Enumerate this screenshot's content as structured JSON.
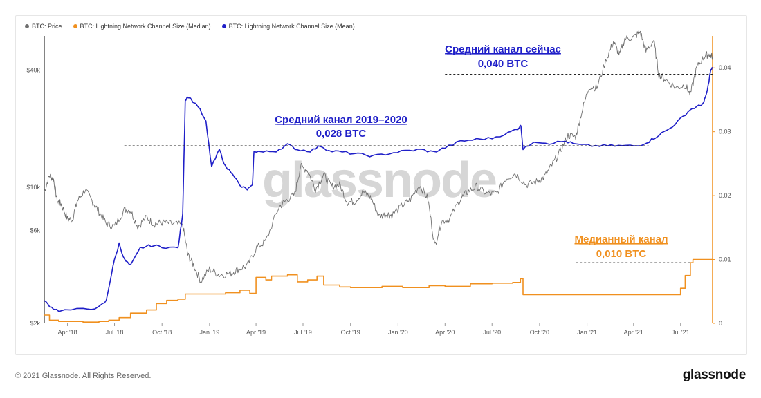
{
  "chart_data": {
    "type": "line",
    "legend": [
      {
        "name": "BTC: Price",
        "color": "#6f6f6f"
      },
      {
        "name": "BTC: Lightning Network Channel Size (Median)",
        "color": "#f0901f"
      },
      {
        "name": "BTC: Lightning Network Channel Size (Mean)",
        "color": "#1f1fc8"
      }
    ],
    "legend_placement": "top-left",
    "x_ticks": [
      "Apr '18",
      "Jul '18",
      "Oct '18",
      "Jan '19",
      "Apr '19",
      "Jul '19",
      "Oct '19",
      "Jan '20",
      "Apr '20",
      "Jul '20",
      "Oct '20",
      "Jan '21",
      "Apr '21",
      "Jul '21"
    ],
    "x_range": [
      "2018-02-15",
      "2021-09-01"
    ],
    "y_left": {
      "scale": "log",
      "ticks": [
        "$2k",
        "$6k",
        "$10k",
        "$40k"
      ],
      "tick_values": [
        2000,
        6000,
        10000,
        40000
      ],
      "range": [
        2000,
        60000
      ]
    },
    "y_right": {
      "scale": "linear",
      "ticks": [
        "0",
        "0.01",
        "0.02",
        "0.03",
        "0.04"
      ],
      "tick_values": [
        0,
        0.01,
        0.02,
        0.03,
        0.04
      ],
      "range": [
        0,
        0.045
      ]
    },
    "series": [
      {
        "name": "BTC: Price",
        "color": "#6f6f6f",
        "axis": "left",
        "points": [
          [
            "2018-02-15",
            9500
          ],
          [
            "2018-02-25",
            11500
          ],
          [
            "2018-03-05",
            11000
          ],
          [
            "2018-03-12",
            8500
          ],
          [
            "2018-03-20",
            8200
          ],
          [
            "2018-04-01",
            6900
          ],
          [
            "2018-04-10",
            6800
          ],
          [
            "2018-04-20",
            8500
          ],
          [
            "2018-05-05",
            9700
          ],
          [
            "2018-05-20",
            8400
          ],
          [
            "2018-06-01",
            7500
          ],
          [
            "2018-06-15",
            6500
          ],
          [
            "2018-07-01",
            6300
          ],
          [
            "2018-07-20",
            7700
          ],
          [
            "2018-08-01",
            7600
          ],
          [
            "2018-08-15",
            6300
          ],
          [
            "2018-09-01",
            7000
          ],
          [
            "2018-09-15",
            6500
          ],
          [
            "2018-10-01",
            6600
          ],
          [
            "2018-10-20",
            6500
          ],
          [
            "2018-11-10",
            6400
          ],
          [
            "2018-11-20",
            4500
          ],
          [
            "2018-12-01",
            4000
          ],
          [
            "2018-12-15",
            3300
          ],
          [
            "2019-01-01",
            3800
          ],
          [
            "2019-01-20",
            3550
          ],
          [
            "2019-02-10",
            3600
          ],
          [
            "2019-02-25",
            3800
          ],
          [
            "2019-03-15",
            3950
          ],
          [
            "2019-04-02",
            4900
          ],
          [
            "2019-04-20",
            5300
          ],
          [
            "2019-05-15",
            7900
          ],
          [
            "2019-05-30",
            8600
          ],
          [
            "2019-06-15",
            9200
          ],
          [
            "2019-06-26",
            12800
          ],
          [
            "2019-07-10",
            12200
          ],
          [
            "2019-07-25",
            9800
          ],
          [
            "2019-08-10",
            11600
          ],
          [
            "2019-08-25",
            10100
          ],
          [
            "2019-09-10",
            10300
          ],
          [
            "2019-09-25",
            8400
          ],
          [
            "2019-10-10",
            8500
          ],
          [
            "2019-10-26",
            9500
          ],
          [
            "2019-11-10",
            8800
          ],
          [
            "2019-11-25",
            7100
          ],
          [
            "2019-12-10",
            7300
          ],
          [
            "2019-12-20",
            7200
          ],
          [
            "2020-01-10",
            8100
          ],
          [
            "2020-01-25",
            8700
          ],
          [
            "2020-02-12",
            10300
          ],
          [
            "2020-02-28",
            8700
          ],
          [
            "2020-03-12",
            5000
          ],
          [
            "2020-03-25",
            6700
          ],
          [
            "2020-04-10",
            6900
          ],
          [
            "2020-04-30",
            8700
          ],
          [
            "2020-05-15",
            9500
          ],
          [
            "2020-06-01",
            10100
          ],
          [
            "2020-06-20",
            9300
          ],
          [
            "2020-07-10",
            9300
          ],
          [
            "2020-07-28",
            11100
          ],
          [
            "2020-08-15",
            11800
          ],
          [
            "2020-09-05",
            10300
          ],
          [
            "2020-09-25",
            10700
          ],
          [
            "2020-10-10",
            11300
          ],
          [
            "2020-10-25",
            13000
          ],
          [
            "2020-11-10",
            15300
          ],
          [
            "2020-11-25",
            18500
          ],
          [
            "2020-12-10",
            18200
          ],
          [
            "2020-12-20",
            23500
          ],
          [
            "2021-01-05",
            33000
          ],
          [
            "2021-01-20",
            32500
          ],
          [
            "2021-02-08",
            46000
          ],
          [
            "2021-02-21",
            56000
          ],
          [
            "2021-03-05",
            48000
          ],
          [
            "2021-03-15",
            58000
          ],
          [
            "2021-04-01",
            59000
          ],
          [
            "2021-04-14",
            63000
          ],
          [
            "2021-04-25",
            50000
          ],
          [
            "2021-05-10",
            57000
          ],
          [
            "2021-05-20",
            38000
          ],
          [
            "2021-06-01",
            36000
          ],
          [
            "2021-06-22",
            32500
          ],
          [
            "2021-07-10",
            33500
          ],
          [
            "2021-07-20",
            30000
          ],
          [
            "2021-08-01",
            41000
          ],
          [
            "2021-08-15",
            47000
          ],
          [
            "2021-08-25",
            48500
          ],
          [
            "2021-09-01",
            47000
          ]
        ]
      },
      {
        "name": "BTC: Lightning Network Channel Size (Median)",
        "color": "#f0901f",
        "axis": "right",
        "points": [
          [
            "2018-02-15",
            0.0013
          ],
          [
            "2018-02-25",
            0.0005
          ],
          [
            "2018-03-15",
            0.0003
          ],
          [
            "2018-05-01",
            0.0002
          ],
          [
            "2018-06-01",
            0.0003
          ],
          [
            "2018-06-20",
            0.0005
          ],
          [
            "2018-07-10",
            0.0009
          ],
          [
            "2018-08-01",
            0.0016
          ],
          [
            "2018-09-01",
            0.0021
          ],
          [
            "2018-09-20",
            0.0031
          ],
          [
            "2018-10-10",
            0.0036
          ],
          [
            "2018-11-01",
            0.0038
          ],
          [
            "2018-11-15",
            0.0046
          ],
          [
            "2019-01-01",
            0.0046
          ],
          [
            "2019-02-01",
            0.0048
          ],
          [
            "2019-03-01",
            0.0052
          ],
          [
            "2019-03-20",
            0.0047
          ],
          [
            "2019-04-01",
            0.0072
          ],
          [
            "2019-04-20",
            0.0068
          ],
          [
            "2019-05-01",
            0.0074
          ],
          [
            "2019-06-01",
            0.0076
          ],
          [
            "2019-06-20",
            0.0065
          ],
          [
            "2019-07-10",
            0.0068
          ],
          [
            "2019-07-28",
            0.0074
          ],
          [
            "2019-08-10",
            0.006
          ],
          [
            "2019-09-10",
            0.0057
          ],
          [
            "2019-10-01",
            0.0056
          ],
          [
            "2019-12-01",
            0.0058
          ],
          [
            "2020-01-10",
            0.0056
          ],
          [
            "2020-03-01",
            0.0059
          ],
          [
            "2020-04-01",
            0.0058
          ],
          [
            "2020-05-20",
            0.0062
          ],
          [
            "2020-07-01",
            0.0063
          ],
          [
            "2020-08-10",
            0.0064
          ],
          [
            "2020-08-25",
            0.007
          ],
          [
            "2020-08-30",
            0.0045
          ],
          [
            "2020-12-01",
            0.0045
          ],
          [
            "2021-04-01",
            0.0045
          ],
          [
            "2021-06-15",
            0.0045
          ],
          [
            "2021-07-01",
            0.0055
          ],
          [
            "2021-07-10",
            0.0075
          ],
          [
            "2021-07-20",
            0.0095
          ],
          [
            "2021-07-25",
            0.01
          ],
          [
            "2021-09-01",
            0.01
          ]
        ]
      },
      {
        "name": "BTC: Lightning Network Channel Size (Mean)",
        "color": "#1f1fc8",
        "axis": "right",
        "points": [
          [
            "2018-02-15",
            0.0035
          ],
          [
            "2018-03-01",
            0.0025
          ],
          [
            "2018-03-15",
            0.002
          ],
          [
            "2018-05-01",
            0.0022
          ],
          [
            "2018-06-01",
            0.0025
          ],
          [
            "2018-06-15",
            0.0035
          ],
          [
            "2018-06-28",
            0.009
          ],
          [
            "2018-07-10",
            0.0125
          ],
          [
            "2018-07-20",
            0.01
          ],
          [
            "2018-08-01",
            0.009
          ],
          [
            "2018-08-20",
            0.0118
          ],
          [
            "2018-09-10",
            0.0122
          ],
          [
            "2018-10-01",
            0.012
          ],
          [
            "2018-11-01",
            0.0118
          ],
          [
            "2018-11-10",
            0.017
          ],
          [
            "2018-11-15",
            0.035
          ],
          [
            "2018-11-20",
            0.0355
          ],
          [
            "2018-12-10",
            0.034
          ],
          [
            "2018-12-25",
            0.0315
          ],
          [
            "2019-01-05",
            0.0245
          ],
          [
            "2019-01-20",
            0.0272
          ],
          [
            "2019-02-01",
            0.0245
          ],
          [
            "2019-02-15",
            0.0235
          ],
          [
            "2019-03-01",
            0.0215
          ],
          [
            "2019-03-15",
            0.021
          ],
          [
            "2019-03-25",
            0.0215
          ],
          [
            "2019-03-28",
            0.027
          ],
          [
            "2019-04-15",
            0.0268
          ],
          [
            "2019-05-10",
            0.027
          ],
          [
            "2019-06-01",
            0.028
          ],
          [
            "2019-06-20",
            0.0272
          ],
          [
            "2019-07-15",
            0.027
          ],
          [
            "2019-08-05",
            0.0278
          ],
          [
            "2019-08-20",
            0.027
          ],
          [
            "2019-09-15",
            0.0268
          ],
          [
            "2019-10-15",
            0.0265
          ],
          [
            "2019-11-15",
            0.0262
          ],
          [
            "2019-12-15",
            0.0266
          ],
          [
            "2020-01-15",
            0.027
          ],
          [
            "2020-02-15",
            0.0272
          ],
          [
            "2020-03-10",
            0.0268
          ],
          [
            "2020-04-01",
            0.0275
          ],
          [
            "2020-05-01",
            0.0285
          ],
          [
            "2020-06-01",
            0.0288
          ],
          [
            "2020-07-01",
            0.029
          ],
          [
            "2020-08-01",
            0.0298
          ],
          [
            "2020-08-20",
            0.0305
          ],
          [
            "2020-08-26",
            0.031
          ],
          [
            "2020-08-30",
            0.0272
          ],
          [
            "2020-09-20",
            0.0285
          ],
          [
            "2020-10-20",
            0.0282
          ],
          [
            "2020-11-20",
            0.0285
          ],
          [
            "2020-12-10",
            0.028
          ],
          [
            "2021-01-10",
            0.0278
          ],
          [
            "2021-02-10",
            0.0278
          ],
          [
            "2021-03-10",
            0.0278
          ],
          [
            "2021-04-10",
            0.0278
          ],
          [
            "2021-05-01",
            0.0285
          ],
          [
            "2021-05-20",
            0.0295
          ],
          [
            "2021-06-10",
            0.0305
          ],
          [
            "2021-07-01",
            0.032
          ],
          [
            "2021-07-20",
            0.0335
          ],
          [
            "2021-08-05",
            0.034
          ],
          [
            "2021-08-15",
            0.0345
          ],
          [
            "2021-08-22",
            0.0365
          ],
          [
            "2021-08-28",
            0.0395
          ],
          [
            "2021-09-01",
            0.04
          ]
        ]
      }
    ],
    "annotations": [
      {
        "id": "mean-2019",
        "line1": "Средний канал 2019–2020",
        "line2": "0,028 BTC",
        "color": "#1f1fc8",
        "line_value": 0.0278,
        "line_from": "2018-07-20",
        "line_to": "2021-04-30"
      },
      {
        "id": "mean-now",
        "line1": "Средний канал сейчас",
        "line2": "0,040 BTC",
        "color": "#1f1fc8",
        "line_value": 0.039,
        "line_from": "2020-04-01",
        "line_to": "2021-09-01"
      },
      {
        "id": "median-now",
        "line1": "Медианный канал",
        "line2": "0,010 BTC",
        "color": "#f0901f",
        "line_value": 0.0095,
        "line_from": "2020-12-10",
        "line_to": "2021-07-20"
      }
    ]
  },
  "watermark": "glassnode",
  "footer": {
    "copyright": "© 2021 Glassnode. All Rights Reserved.",
    "logo": "glassnode"
  }
}
